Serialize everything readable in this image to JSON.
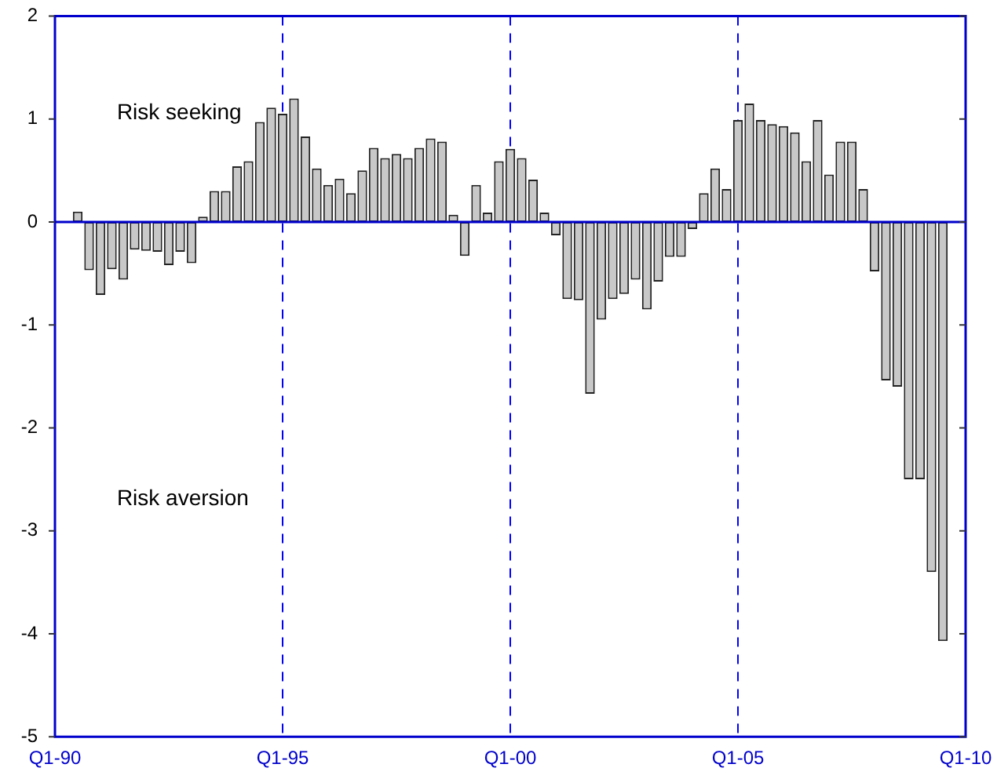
{
  "chart_data": {
    "type": "bar",
    "color": "#c8c8c8",
    "categories": [
      "Q1-90",
      null,
      null,
      null,
      null,
      null,
      null,
      null,
      null,
      null,
      null,
      null,
      null,
      null,
      null,
      null,
      null,
      null,
      null,
      null,
      "Q1-95",
      null,
      null,
      null,
      null,
      null,
      null,
      null,
      null,
      null,
      null,
      null,
      null,
      null,
      null,
      null,
      null,
      null,
      null,
      null,
      "Q1-00",
      null,
      null,
      null,
      null,
      null,
      null,
      null,
      null,
      null,
      null,
      null,
      null,
      null,
      null,
      null,
      null,
      null,
      null,
      null,
      "Q1-05",
      null,
      null,
      null,
      null,
      null,
      null,
      null,
      null,
      null,
      null,
      null,
      null,
      null,
      null,
      null,
      null,
      null,
      null,
      null,
      "Q1-10"
    ],
    "values": [
      null,
      null,
      0.1,
      -0.47,
      -0.71,
      -0.46,
      -0.56,
      -0.27,
      -0.28,
      -0.29,
      -0.42,
      -0.29,
      -0.4,
      0.05,
      0.3,
      0.3,
      0.54,
      0.59,
      0.97,
      1.11,
      1.05,
      1.2,
      0.83,
      0.52,
      0.36,
      0.42,
      0.28,
      0.5,
      0.72,
      0.62,
      0.66,
      0.62,
      0.72,
      0.81,
      0.78,
      0.07,
      -0.33,
      0.36,
      0.09,
      0.59,
      0.71,
      0.62,
      0.41,
      0.09,
      -0.13,
      -0.75,
      -0.76,
      -1.67,
      -0.95,
      -0.75,
      -0.7,
      -0.56,
      -0.85,
      -0.58,
      -0.34,
      -0.34,
      -0.07,
      0.28,
      0.52,
      0.32,
      0.99,
      1.15,
      0.99,
      0.95,
      0.93,
      0.87,
      0.59,
      0.99,
      0.46,
      0.78,
      0.78,
      0.32,
      -0.48,
      -1.54,
      -1.6,
      -2.5,
      -2.5,
      -3.4,
      -4.07,
      null,
      null
    ],
    "ylim": [
      -5,
      2
    ],
    "yticks": [
      -5,
      -4,
      -3,
      -2,
      -1,
      0,
      1,
      2
    ],
    "ref_lines": [
      {
        "axis": "x",
        "value": "Q1-95",
        "color": "#0000ff",
        "line_style": "dashed"
      },
      {
        "axis": "x",
        "value": "Q1-00",
        "color": "#0000ff",
        "line_style": "dashed"
      },
      {
        "axis": "x",
        "value": "Q1-05",
        "color": "#0000ff",
        "line_style": "dashed"
      },
      {
        "axis": "y",
        "value": 0,
        "color": "#0000cc",
        "line_style": "solid"
      }
    ],
    "annotations": [
      "Risk seeking",
      "Risk aversion"
    ],
    "grid": false,
    "legend": false
  }
}
